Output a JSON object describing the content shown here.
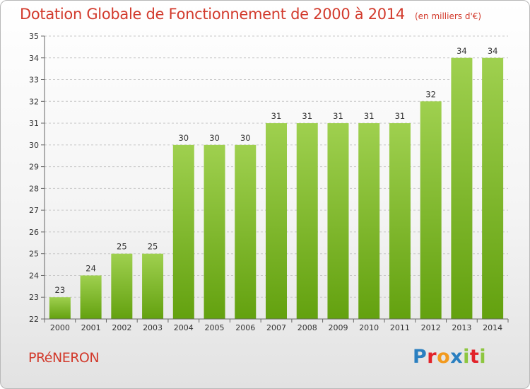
{
  "header": {
    "title": "Dotation Globale de Fonctionnement de 2000 à 2014",
    "subtitle": "(en milliers d'€)"
  },
  "footer": {
    "commune": "PRéNERON",
    "brand": "Proxiti",
    "brand_letters": [
      {
        "char": "P",
        "color": "#2a7fc0"
      },
      {
        "char": "r",
        "color": "#e2232a"
      },
      {
        "char": "o",
        "color": "#f29a1e"
      },
      {
        "char": "x",
        "color": "#2a7fc0"
      },
      {
        "char": "i",
        "color": "#8dc63f"
      },
      {
        "char": "t",
        "color": "#e2232a"
      },
      {
        "char": "i",
        "color": "#8dc63f"
      }
    ]
  },
  "colors": {
    "title": "#d23a2c",
    "bar_light": "#9fd04f",
    "bar_dark": "#63a10f",
    "grid": "#c8c8c8"
  },
  "chart_data": {
    "type": "bar",
    "title": "Dotation Globale de Fonctionnement de 2000 à 2014",
    "subtitle": "(en milliers d'€)",
    "categories": [
      "2000",
      "2001",
      "2002",
      "2003",
      "2004",
      "2005",
      "2006",
      "2007",
      "2008",
      "2009",
      "2010",
      "2011",
      "2012",
      "2013",
      "2014"
    ],
    "values": [
      23,
      24,
      25,
      25,
      30,
      30,
      30,
      31,
      31,
      31,
      31,
      31,
      32,
      34,
      34
    ],
    "ylim": [
      22,
      35
    ],
    "yticks": [
      22,
      23,
      24,
      25,
      26,
      27,
      28,
      29,
      30,
      31,
      32,
      33,
      34,
      35
    ],
    "grid": "horizontal dashed",
    "data_labels": true
  }
}
